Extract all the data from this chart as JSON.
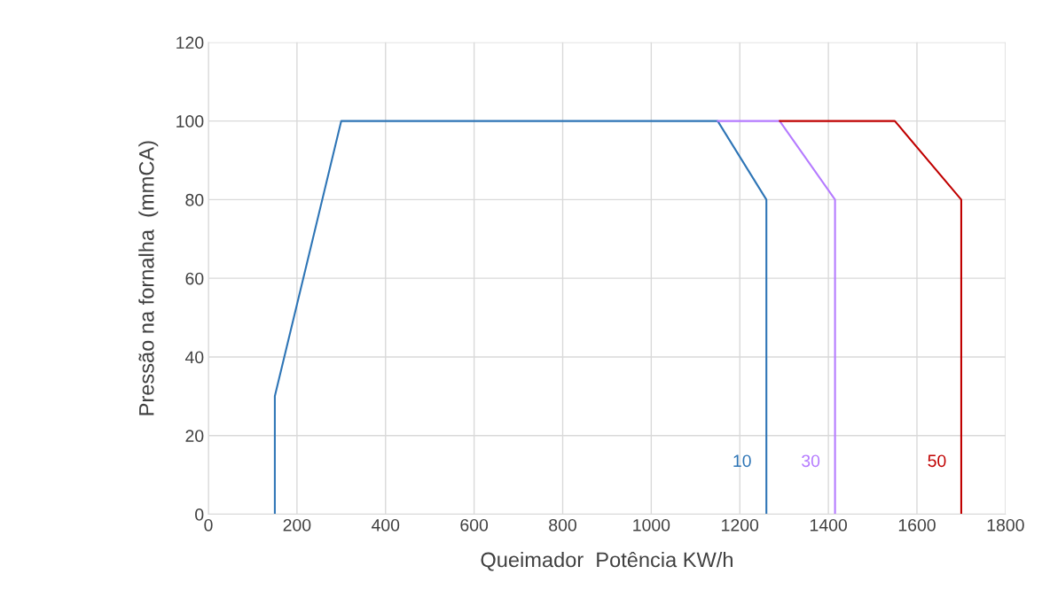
{
  "chart_data": {
    "type": "line",
    "xlabel": "Queimador  Potência KW/h",
    "ylabel": "Pressão na fornalha  (mmCA)",
    "series": [
      {
        "name": "10",
        "color": "#2e75b6",
        "x": [
          150,
          150,
          300,
          1150,
          1260,
          1260
        ],
        "values": [
          0,
          30,
          100,
          100,
          80,
          0
        ]
      },
      {
        "name": "30",
        "color": "#b57bff",
        "x": [
          1150,
          1290,
          1415,
          1415
        ],
        "values": [
          100,
          100,
          80,
          0
        ]
      },
      {
        "name": "50",
        "color": "#c00000",
        "x": [
          1290,
          1550,
          1700,
          1700
        ],
        "values": [
          100,
          100,
          80,
          0
        ]
      }
    ],
    "xlim": [
      0,
      1800
    ],
    "xticks": [
      0,
      200,
      400,
      600,
      800,
      1000,
      1200,
      1400,
      1600,
      1800
    ],
    "ylim": [
      0,
      120
    ],
    "yticks": [
      0,
      20,
      40,
      60,
      80,
      100,
      120
    ],
    "grid": true,
    "legend": false,
    "marker": "none",
    "line_style": "solid"
  }
}
